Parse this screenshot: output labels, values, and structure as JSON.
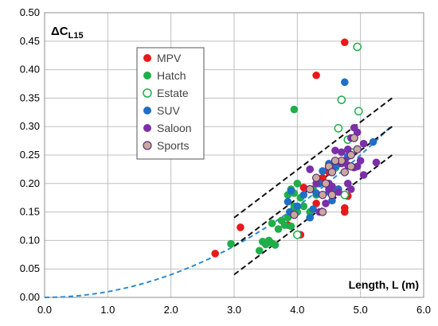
{
  "chart_data": {
    "type": "scatter",
    "ylabel": "ΔC",
    "ylabel_sub": "L15",
    "xlabel": "Length, L (m)",
    "xlim": [
      0,
      6
    ],
    "ylim": [
      0,
      0.5
    ],
    "x_ticks": [
      "0.0",
      "1.0",
      "2.0",
      "3.0",
      "4.0",
      "5.0",
      "6.0"
    ],
    "y_ticks": [
      "0.00",
      "0.05",
      "0.10",
      "0.15",
      "0.20",
      "0.25",
      "0.30",
      "0.35",
      "0.40",
      "0.45",
      "0.50"
    ],
    "grid": true,
    "legend_position": "upper-left",
    "series": [
      {
        "name": "MPV",
        "color": "#e8191a",
        "marker": "filled",
        "points": [
          [
            2.7,
            0.077
          ],
          [
            3.1,
            0.123
          ],
          [
            4.05,
            0.11
          ],
          [
            3.85,
            0.127
          ],
          [
            4.1,
            0.193
          ],
          [
            4.3,
            0.39
          ],
          [
            4.75,
            0.448
          ],
          [
            4.75,
            0.15
          ],
          [
            4.75,
            0.157
          ],
          [
            4.8,
            0.178
          ],
          [
            4.65,
            0.19
          ],
          [
            4.5,
            0.22
          ],
          [
            4.4,
            0.21
          ],
          [
            4.3,
            0.165
          ]
        ]
      },
      {
        "name": "Hatch",
        "color": "#1fae49",
        "marker": "filled",
        "points": [
          [
            2.95,
            0.094
          ],
          [
            3.4,
            0.082
          ],
          [
            3.45,
            0.098
          ],
          [
            3.5,
            0.093
          ],
          [
            3.55,
            0.1
          ],
          [
            3.6,
            0.095
          ],
          [
            3.65,
            0.092
          ],
          [
            3.6,
            0.13
          ],
          [
            3.7,
            0.12
          ],
          [
            3.75,
            0.135
          ],
          [
            3.8,
            0.127
          ],
          [
            3.85,
            0.14
          ],
          [
            3.9,
            0.15
          ],
          [
            3.95,
            0.16
          ],
          [
            3.85,
            0.18
          ],
          [
            3.9,
            0.19
          ],
          [
            3.95,
            0.183
          ],
          [
            4.0,
            0.2
          ],
          [
            4.05,
            0.175
          ],
          [
            4.1,
            0.16
          ],
          [
            4.2,
            0.15
          ],
          [
            4.25,
            0.19
          ],
          [
            4.3,
            0.18
          ],
          [
            3.95,
            0.33
          ],
          [
            4.0,
            0.15
          ],
          [
            3.9,
            0.125
          ],
          [
            4.2,
            0.14
          ]
        ]
      },
      {
        "name": "Estate",
        "color": "#1fae49",
        "marker": "open",
        "points": [
          [
            4.95,
            0.44
          ],
          [
            4.7,
            0.347
          ],
          [
            4.97,
            0.327
          ],
          [
            4.65,
            0.297
          ],
          [
            4.8,
            0.277
          ],
          [
            4.85,
            0.255
          ],
          [
            4.0,
            0.11
          ],
          [
            4.6,
            0.228
          ],
          [
            4.75,
            0.18
          ]
        ]
      },
      {
        "name": "SUV",
        "color": "#1f6fc4",
        "marker": "filled",
        "points": [
          [
            4.75,
            0.378
          ],
          [
            5.2,
            0.273
          ],
          [
            4.5,
            0.235
          ],
          [
            4.6,
            0.23
          ],
          [
            4.4,
            0.222
          ],
          [
            4.65,
            0.19
          ],
          [
            4.5,
            0.185
          ],
          [
            4.55,
            0.19
          ],
          [
            4.3,
            0.183
          ],
          [
            4.35,
            0.2
          ],
          [
            4.25,
            0.155
          ],
          [
            4.2,
            0.14
          ],
          [
            3.85,
            0.168
          ],
          [
            3.9,
            0.187
          ],
          [
            3.88,
            0.15
          ],
          [
            4.0,
            0.16
          ],
          [
            4.1,
            0.18
          ],
          [
            4.8,
            0.248
          ],
          [
            4.55,
            0.17
          ],
          [
            4.2,
            0.225
          ]
        ]
      },
      {
        "name": "Saloon",
        "color": "#7b2fa8",
        "marker": "filled",
        "points": [
          [
            4.9,
            0.298
          ],
          [
            4.95,
            0.29
          ],
          [
            4.85,
            0.28
          ],
          [
            5.05,
            0.27
          ],
          [
            4.8,
            0.26
          ],
          [
            4.7,
            0.255
          ],
          [
            4.6,
            0.258
          ],
          [
            4.75,
            0.24
          ],
          [
            4.7,
            0.235
          ],
          [
            4.8,
            0.232
          ],
          [
            4.9,
            0.228
          ],
          [
            5.0,
            0.24
          ],
          [
            5.05,
            0.215
          ],
          [
            5.25,
            0.237
          ],
          [
            4.95,
            0.23
          ],
          [
            4.5,
            0.2
          ],
          [
            4.55,
            0.195
          ],
          [
            4.65,
            0.185
          ],
          [
            4.5,
            0.19
          ],
          [
            4.4,
            0.18
          ],
          [
            4.3,
            0.2
          ],
          [
            4.2,
            0.225
          ],
          [
            4.45,
            0.165
          ],
          [
            4.35,
            0.15
          ],
          [
            4.8,
            0.2
          ],
          [
            4.85,
            0.19
          ]
        ]
      },
      {
        "name": "Sports",
        "color": "#c9a99e",
        "marker": "filled-outline",
        "points": [
          [
            4.9,
            0.28
          ],
          [
            4.95,
            0.26
          ],
          [
            4.85,
            0.25
          ],
          [
            4.7,
            0.24
          ],
          [
            4.6,
            0.24
          ],
          [
            4.5,
            0.23
          ],
          [
            4.55,
            0.22
          ],
          [
            4.45,
            0.2
          ],
          [
            4.4,
            0.18
          ],
          [
            4.55,
            0.18
          ],
          [
            4.3,
            0.21
          ],
          [
            4.2,
            0.19
          ],
          [
            3.95,
            0.145
          ],
          [
            4.4,
            0.15
          ],
          [
            4.75,
            0.22
          ],
          [
            4.85,
            0.23
          ]
        ]
      }
    ],
    "curves": [
      {
        "style": "fit",
        "color": "#2e8bd0",
        "dash": "dashed",
        "formula": "y = 0.01 * x^2",
        "x_range": [
          0,
          5.5
        ]
      },
      {
        "style": "band-upper",
        "color": "#111111",
        "dash": "dashed",
        "points": [
          [
            3.0,
            0.14
          ],
          [
            5.5,
            0.35
          ]
        ]
      },
      {
        "style": "band-middle",
        "color": "#111111",
        "dash": "dashed",
        "points": [
          [
            3.0,
            0.09
          ],
          [
            5.5,
            0.3
          ]
        ]
      },
      {
        "style": "band-lower",
        "color": "#111111",
        "dash": "dashed",
        "points": [
          [
            3.0,
            0.04
          ],
          [
            5.5,
            0.25
          ]
        ]
      }
    ]
  }
}
